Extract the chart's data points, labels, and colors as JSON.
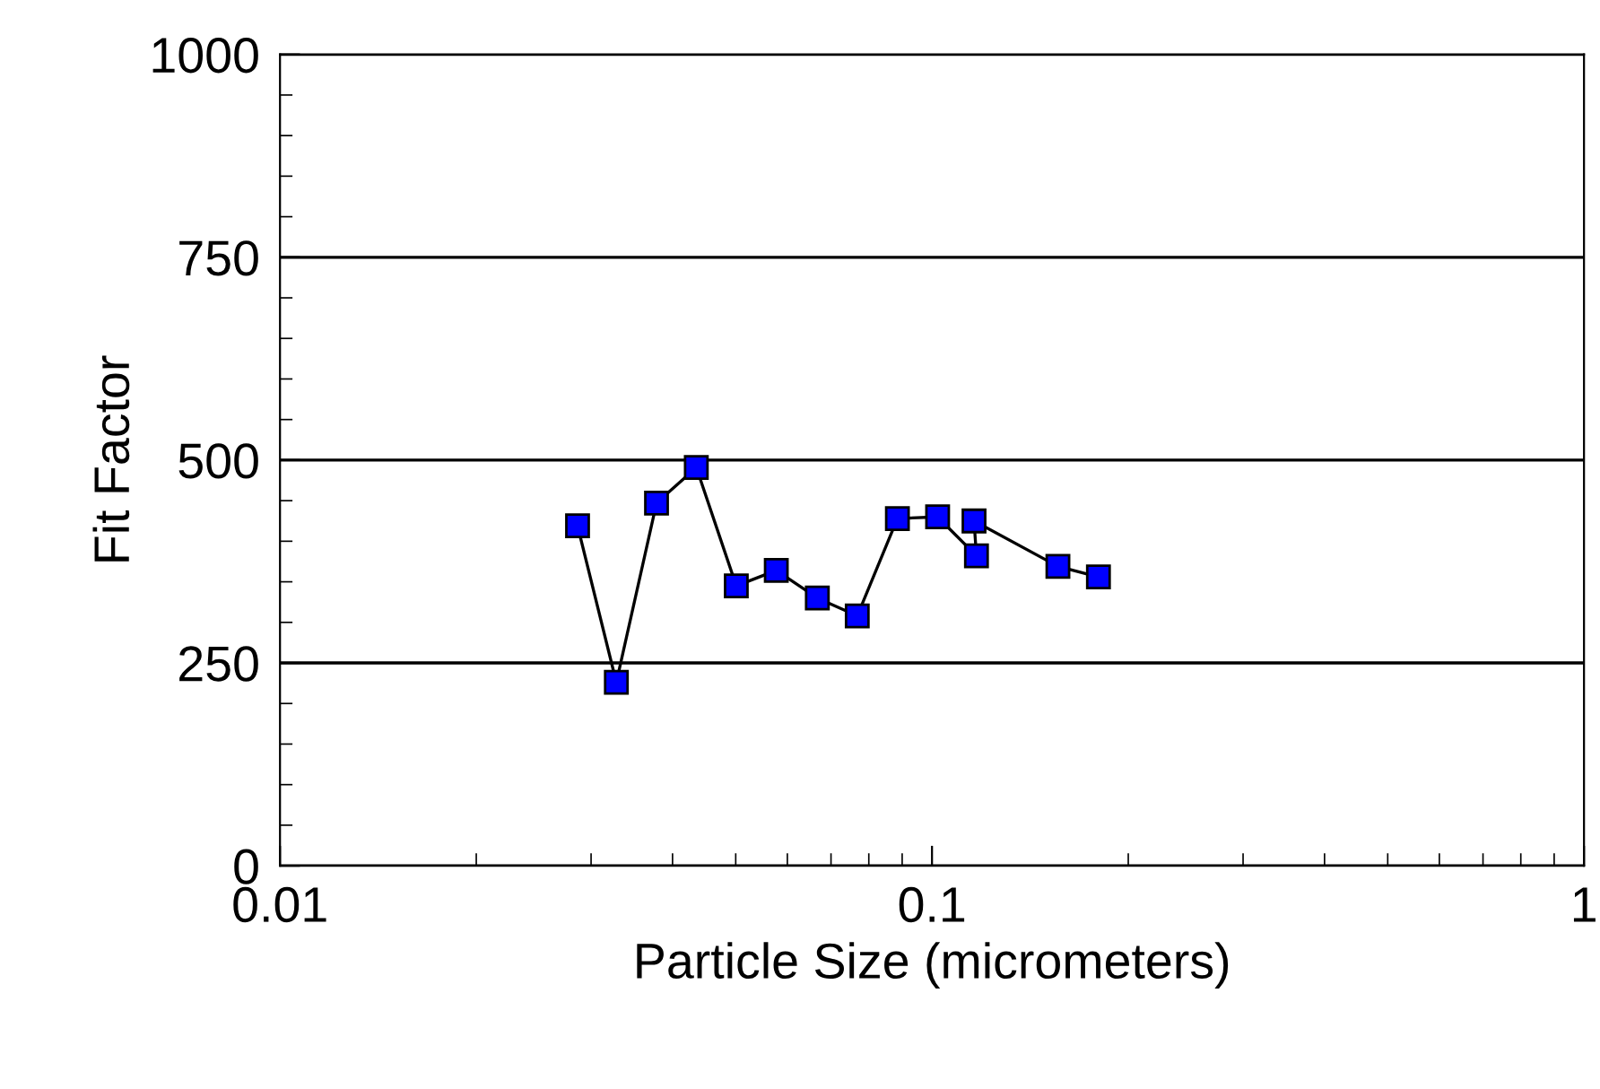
{
  "chart_data": {
    "type": "line",
    "xlabel": "Particle Size (micrometers)",
    "ylabel": "Fit Factor",
    "log": "x",
    "x": [
      0.0286,
      0.0328,
      0.0378,
      0.0435,
      0.0501,
      0.0577,
      0.0667,
      0.0768,
      0.0885,
      0.102,
      0.117,
      0.116,
      0.156,
      0.18
    ],
    "series": [
      {
        "color": "#0000ff",
        "values": [
          419,
          226,
          447,
          491,
          345,
          364,
          330,
          308,
          428,
          430,
          382,
          425,
          369,
          356
        ]
      }
    ],
    "xlim": [
      0.01,
      1
    ],
    "xticks": [
      0.01,
      0.1,
      1
    ],
    "ylim": [
      0,
      1000
    ],
    "yticks": [
      0,
      250,
      500,
      750,
      1000
    ],
    "grid": "y",
    "marker": "square",
    "line_style": "solid"
  }
}
